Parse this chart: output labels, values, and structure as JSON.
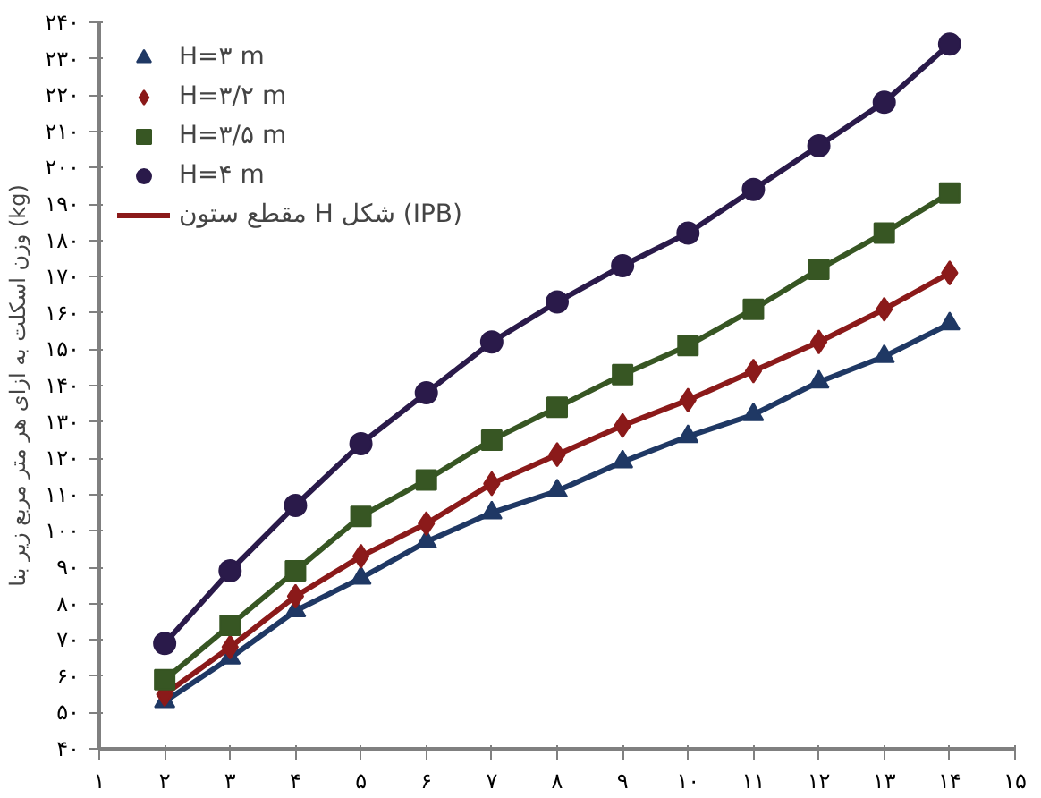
{
  "chart_data": {
    "type": "line",
    "ylabel": "وزن اسکلت به ازای هر متر مربع زیر بنا (kg)",
    "x": [
      2,
      3,
      4,
      5,
      6,
      7,
      8,
      9,
      10,
      11,
      12,
      13,
      14
    ],
    "xlim": [
      1,
      15
    ],
    "xticks": [
      {
        "value": 1,
        "label": "۱"
      },
      {
        "value": 2,
        "label": "۲"
      },
      {
        "value": 3,
        "label": "۳"
      },
      {
        "value": 4,
        "label": "۴"
      },
      {
        "value": 5,
        "label": "۵"
      },
      {
        "value": 6,
        "label": "۶"
      },
      {
        "value": 7,
        "label": "۷"
      },
      {
        "value": 8,
        "label": "۸"
      },
      {
        "value": 9,
        "label": "۹"
      },
      {
        "value": 10,
        "label": "۱۰"
      },
      {
        "value": 11,
        "label": "۱۱"
      },
      {
        "value": 12,
        "label": "۱۲"
      },
      {
        "value": 13,
        "label": "۱۳"
      },
      {
        "value": 14,
        "label": "۱۴"
      },
      {
        "value": 15,
        "label": "۱۵"
      }
    ],
    "ylim": [
      40,
      240
    ],
    "yticks": [
      {
        "value": 40,
        "label": "۴۰"
      },
      {
        "value": 50,
        "label": "۵۰"
      },
      {
        "value": 60,
        "label": "۶۰"
      },
      {
        "value": 70,
        "label": "۷۰"
      },
      {
        "value": 80,
        "label": "۸۰"
      },
      {
        "value": 90,
        "label": "۹۰"
      },
      {
        "value": 100,
        "label": "۱۰۰"
      },
      {
        "value": 110,
        "label": "۱۱۰"
      },
      {
        "value": 120,
        "label": "۱۲۰"
      },
      {
        "value": 130,
        "label": "۱۳۰"
      },
      {
        "value": 140,
        "label": "۱۴۰"
      },
      {
        "value": 150,
        "label": "۱۵۰"
      },
      {
        "value": 160,
        "label": "۱۶۰"
      },
      {
        "value": 170,
        "label": "۱۷۰"
      },
      {
        "value": 180,
        "label": "۱۸۰"
      },
      {
        "value": 190,
        "label": "۱۹۰"
      },
      {
        "value": 200,
        "label": "۲۰۰"
      },
      {
        "value": 210,
        "label": "۲۱۰"
      },
      {
        "value": 220,
        "label": "۲۲۰"
      },
      {
        "value": 230,
        "label": "۲۳۰"
      },
      {
        "value": 240,
        "label": "۲۴۰"
      }
    ],
    "grid": false,
    "legend": "top left",
    "series": [
      {
        "name": "H=۳ m",
        "color": "#1f3864",
        "marker": "triangle",
        "values": [
          53,
          65,
          78,
          87,
          97,
          105,
          111,
          119,
          126,
          132,
          141,
          148,
          157
        ]
      },
      {
        "name": "H=۳/۲ m",
        "color": "#8b1a1a",
        "marker": "diamond",
        "values": [
          55,
          68,
          82,
          93,
          102,
          113,
          121,
          129,
          136,
          144,
          152,
          161,
          171
        ]
      },
      {
        "name": "H=۳/۵ m",
        "color": "#375623",
        "marker": "square",
        "values": [
          59,
          74,
          89,
          104,
          114,
          125,
          134,
          143,
          151,
          161,
          172,
          182,
          193
        ]
      },
      {
        "name": "H=۴ m",
        "color": "#2a1a4a",
        "marker": "circle",
        "values": [
          69,
          89,
          107,
          124,
          138,
          152,
          163,
          173,
          182,
          194,
          206,
          218,
          234
        ]
      },
      {
        "name": "مقطع ستون H شکل (IPB)",
        "color": "#8b1a1a",
        "marker": "none",
        "values": [
          null,
          null,
          null,
          null,
          null,
          null,
          null,
          null,
          null,
          null,
          null,
          null,
          null
        ]
      }
    ]
  }
}
